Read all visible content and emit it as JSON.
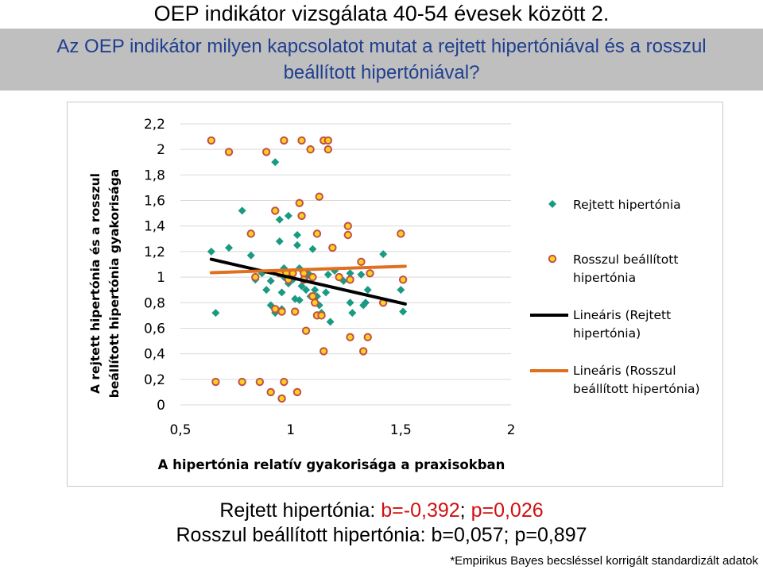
{
  "page": {
    "title": "OEP indikátor vizsgálata 40-54 évesek között 2.",
    "question_line1": "Az OEP indikátor milyen kapcsolatot mutat  a rejtett hipertóniával és a rosszul",
    "question_line2": "beállított hipertóniával?"
  },
  "results": {
    "line1_label": "Rejtett hipertónia: ",
    "line1_b": "b=-0,392",
    "line1_sep": "; ",
    "line1_p": "p=0,026",
    "line2": "Rosszul beállított hipertónia: b=0,057; p=0,897"
  },
  "footnote": "*Empirikus Bayes becsléssel korrigált standardizált adatok",
  "colors": {
    "banner_bg": "#bfbfbf",
    "banner_text": "#1f3f8f",
    "series_hidden": "#1a9a82",
    "series_poor_fill": "#ffd21a",
    "series_poor_stroke": "#c0504d",
    "trend_hidden": "#000000",
    "trend_poor": "#e07020",
    "grid": "#d9d9d9",
    "significant_text": "#d01010"
  },
  "chart_data": {
    "type": "scatter",
    "xlabel": "A hipertónia relatív gyakorisága a praxisokban",
    "ylabel_line1": "A rejtett hipertónia és a rosszul",
    "ylabel_line2": "beállított hipertónia gyakorisága",
    "xlim": [
      0.5,
      2
    ],
    "ylim": [
      0,
      2.2
    ],
    "x_ticks": [
      "0,5",
      "1",
      "1,5",
      "2"
    ],
    "y_ticks": [
      "0",
      "0,2",
      "0,4",
      "0,6",
      "0,8",
      "1",
      "1,2",
      "1,4",
      "1,6",
      "1,8",
      "2",
      "2,2"
    ],
    "grid": "horizontal",
    "legend_position": "right",
    "series": [
      {
        "name": "Rejtett hipertónia",
        "marker": "diamond",
        "points": [
          [
            0.64,
            1.2
          ],
          [
            0.66,
            0.72
          ],
          [
            0.72,
            1.23
          ],
          [
            0.78,
            1.52
          ],
          [
            0.82,
            1.17
          ],
          [
            0.84,
            0.98
          ],
          [
            0.87,
            1.03
          ],
          [
            0.89,
            0.9
          ],
          [
            0.91,
            0.97
          ],
          [
            0.91,
            0.78
          ],
          [
            0.93,
            1.9
          ],
          [
            0.93,
            0.72
          ],
          [
            0.95,
            1.45
          ],
          [
            0.95,
            1.28
          ],
          [
            0.96,
            0.88
          ],
          [
            0.96,
            0.75
          ],
          [
            0.97,
            1.07
          ],
          [
            0.97,
            1.0
          ],
          [
            0.99,
            1.48
          ],
          [
            0.99,
            0.95
          ],
          [
            1.0,
            1.03
          ],
          [
            1.01,
            0.98
          ],
          [
            1.02,
            0.83
          ],
          [
            1.03,
            1.33
          ],
          [
            1.03,
            1.25
          ],
          [
            1.04,
            1.07
          ],
          [
            1.04,
            0.82
          ],
          [
            1.05,
            0.93
          ],
          [
            1.07,
            1.0
          ],
          [
            1.07,
            0.9
          ],
          [
            1.08,
            1.03
          ],
          [
            1.09,
            0.85
          ],
          [
            1.1,
            1.22
          ],
          [
            1.11,
            0.9
          ],
          [
            1.12,
            0.85
          ],
          [
            1.13,
            0.78
          ],
          [
            1.14,
            0.72
          ],
          [
            1.16,
            0.88
          ],
          [
            1.17,
            1.02
          ],
          [
            1.18,
            0.65
          ],
          [
            1.2,
            1.05
          ],
          [
            1.24,
            0.97
          ],
          [
            1.27,
            1.03
          ],
          [
            1.27,
            0.8
          ],
          [
            1.28,
            0.72
          ],
          [
            1.32,
            1.02
          ],
          [
            1.33,
            0.78
          ],
          [
            1.34,
            0.8
          ],
          [
            1.35,
            0.9
          ],
          [
            1.42,
            1.18
          ],
          [
            1.5,
            0.9
          ],
          [
            1.51,
            0.73
          ]
        ]
      },
      {
        "name": "Rosszul beállított hipertónia",
        "marker": "circle",
        "points": [
          [
            0.64,
            2.07
          ],
          [
            0.66,
            0.18
          ],
          [
            0.72,
            1.98
          ],
          [
            0.78,
            0.18
          ],
          [
            0.82,
            1.34
          ],
          [
            0.84,
            1.0
          ],
          [
            0.86,
            0.18
          ],
          [
            0.89,
            1.98
          ],
          [
            0.91,
            0.1
          ],
          [
            0.93,
            1.52
          ],
          [
            0.93,
            0.75
          ],
          [
            0.95,
            1.03
          ],
          [
            0.96,
            0.05
          ],
          [
            0.96,
            0.73
          ],
          [
            0.97,
            2.07
          ],
          [
            0.97,
            0.18
          ],
          [
            0.98,
            1.03
          ],
          [
            0.99,
            0.98
          ],
          [
            1.01,
            1.03
          ],
          [
            1.02,
            0.73
          ],
          [
            1.03,
            0.1
          ],
          [
            1.04,
            1.58
          ],
          [
            1.05,
            1.48
          ],
          [
            1.05,
            2.07
          ],
          [
            1.06,
            1.03
          ],
          [
            1.06,
            0.98
          ],
          [
            1.07,
            0.58
          ],
          [
            1.09,
            2.0
          ],
          [
            1.1,
            1.0
          ],
          [
            1.1,
            0.85
          ],
          [
            1.11,
            0.8
          ],
          [
            1.12,
            1.34
          ],
          [
            1.12,
            0.7
          ],
          [
            1.13,
            1.63
          ],
          [
            1.14,
            0.7
          ],
          [
            1.15,
            2.07
          ],
          [
            1.15,
            0.42
          ],
          [
            1.17,
            2.0
          ],
          [
            1.17,
            2.07
          ],
          [
            1.19,
            1.23
          ],
          [
            1.22,
            1.0
          ],
          [
            1.26,
            1.4
          ],
          [
            1.26,
            1.33
          ],
          [
            1.27,
            0.98
          ],
          [
            1.27,
            0.53
          ],
          [
            1.32,
            1.12
          ],
          [
            1.33,
            0.42
          ],
          [
            1.35,
            0.53
          ],
          [
            1.36,
            1.03
          ],
          [
            1.42,
            0.8
          ],
          [
            1.5,
            1.34
          ],
          [
            1.51,
            0.98
          ]
        ]
      }
    ],
    "trendlines": [
      {
        "name": "Lineáris (Rejtett hipertónia)",
        "series": "Rejtett hipertónia",
        "x": [
          0.64,
          1.52
        ],
        "y": [
          1.14,
          0.79
        ]
      },
      {
        "name": "Lineáris (Rosszul beállított hipertónia)",
        "series": "Rosszul beállított hipertónia",
        "x": [
          0.64,
          1.52
        ],
        "y": [
          1.035,
          1.085
        ]
      }
    ],
    "legend": [
      {
        "label_line1": "Rejtett hipertónia",
        "label_line2": ""
      },
      {
        "label_line1": "Rosszul beállított",
        "label_line2": "hipertónia"
      },
      {
        "label_line1": "Lineáris (Rejtett",
        "label_line2": "hipertónia)"
      },
      {
        "label_line1": "Lineáris (Rosszul",
        "label_line2": "beállított hipertónia)"
      }
    ]
  }
}
